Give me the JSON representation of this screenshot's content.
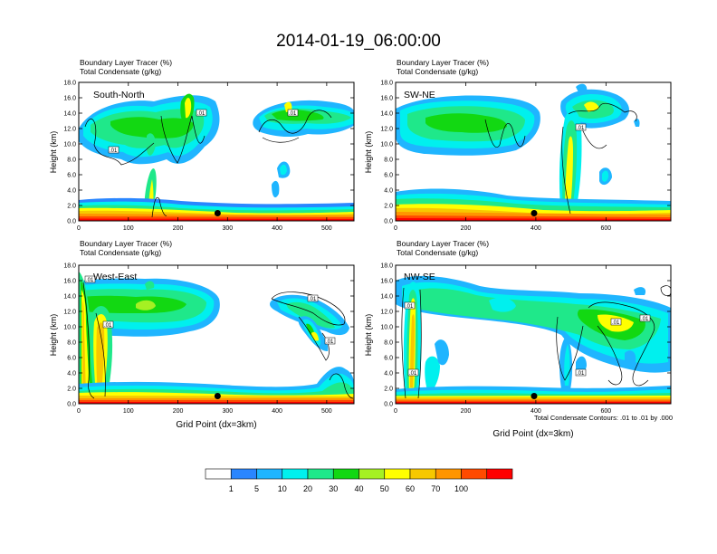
{
  "figure": {
    "title": "2014-01-19_06:00:00",
    "xlabel": "Grid Point (dx=3km)",
    "contour_note": "Total Condensate Contours: .01 to .01 by .000"
  },
  "colorbar": {
    "labels": [
      "1",
      "5",
      "10",
      "20",
      "30",
      "40",
      "50",
      "60",
      "70",
      "100"
    ],
    "colors": [
      "#ffffff",
      "#2a86ff",
      "#1fb5ff",
      "#00f0ee",
      "#1fe88a",
      "#12d812",
      "#a5f023",
      "#ffff00",
      "#f7c800",
      "#ff9500",
      "#ff4a00",
      "#ff0000"
    ]
  },
  "chart_data": [
    {
      "type": "heatmap",
      "name": "South-North",
      "subtitle_line1": "Boundary Layer Tracer   (%)",
      "subtitle_line2": "Total Condensate   (g/kg)",
      "ylabel": "Height (km)",
      "ylim": [
        0,
        18
      ],
      "xlim": [
        0,
        555
      ],
      "xticks": [
        "0",
        "100",
        "200",
        "300",
        "400",
        "500"
      ],
      "yticks": [
        "0.0",
        "2.0",
        "4.0",
        "6.0",
        "8.0",
        "10.0",
        "12.0",
        "14.0",
        "16.0",
        "18.0"
      ],
      "contour_labels": [
        ".01",
        ".01",
        ".01"
      ],
      "station_marker": {
        "x": 280,
        "y_km": 1.0
      }
    },
    {
      "type": "heatmap",
      "name": "SW-NE",
      "subtitle_line1": "Boundary Layer Tracer   (%)",
      "subtitle_line2": "Total Condensate   (g/kg)",
      "ylabel": "Height (km)",
      "ylim": [
        0,
        18
      ],
      "xlim": [
        0,
        785
      ],
      "xticks": [
        "0",
        "200",
        "400",
        "600"
      ],
      "yticks": [
        "0.0",
        "2.0",
        "4.0",
        "6.0",
        "8.0",
        "10.0",
        "12.0",
        "14.0",
        "16.0",
        "18.0"
      ],
      "contour_labels": [
        ".01"
      ],
      "station_marker": {
        "x": 395,
        "y_km": 1.0
      }
    },
    {
      "type": "heatmap",
      "name": "West-East",
      "subtitle_line1": "Boundary Layer Tracer   (%)",
      "subtitle_line2": "Total Condensate   (g/kg)",
      "ylabel": "Height (km)",
      "ylim": [
        0,
        18
      ],
      "xlim": [
        0,
        555
      ],
      "xticks": [
        "0",
        "100",
        "200",
        "300",
        "400",
        "500"
      ],
      "yticks": [
        "0.0",
        "2.0",
        "4.0",
        "6.0",
        "8.0",
        "10.0",
        "12.0",
        "14.0",
        "16.0",
        "18.0"
      ],
      "contour_labels": [
        ".01",
        ".01",
        ".01",
        ".01"
      ],
      "station_marker": {
        "x": 280,
        "y_km": 1.0
      }
    },
    {
      "type": "heatmap",
      "name": "NW-SE",
      "subtitle_line1": "Boundary Layer Tracer   (%)",
      "subtitle_line2": "Total Condensate   (g/kg)",
      "ylabel": "Height (km)",
      "ylim": [
        0,
        18
      ],
      "xlim": [
        0,
        785
      ],
      "xticks": [
        "0",
        "200",
        "400",
        "600"
      ],
      "yticks": [
        "0.0",
        "2.0",
        "4.0",
        "6.0",
        "8.0",
        "10.0",
        "12.0",
        "14.0",
        "16.0",
        "18.0"
      ],
      "contour_labels": [
        ".01",
        ".01",
        ".01",
        ".01",
        ".01"
      ],
      "station_marker": {
        "x": 395,
        "y_km": 1.0
      }
    }
  ]
}
